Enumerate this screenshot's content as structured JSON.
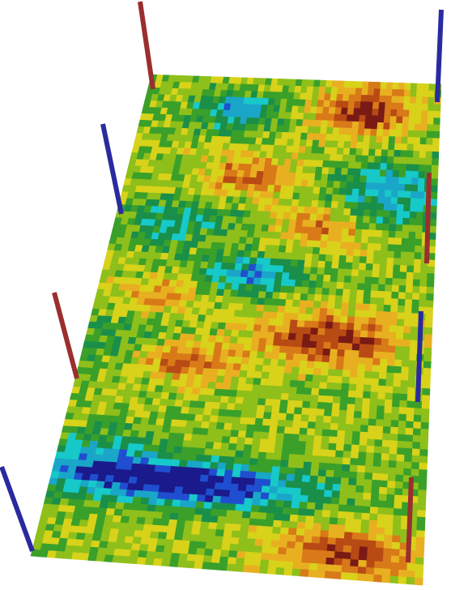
{
  "scene": {
    "colors": {
      "background": "#ffffff",
      "producer_well": "#9b2e2e",
      "injector_well": "#2a2aa0",
      "ramp": [
        "#1a1a8c",
        "#1f4fd0",
        "#1aa6c8",
        "#17c9c9",
        "#1a8f4a",
        "#3aa02a",
        "#8fbf1a",
        "#d8d21a",
        "#e8b020",
        "#d87a18",
        "#b84a14",
        "#7a1a14"
      ]
    },
    "wells": [
      {
        "id": "well-1",
        "type": "producer"
      },
      {
        "id": "well-2",
        "type": "injector"
      },
      {
        "id": "well-3",
        "type": "injector"
      },
      {
        "id": "well-4",
        "type": "producer"
      },
      {
        "id": "well-5",
        "type": "producer"
      },
      {
        "id": "well-6",
        "type": "injector"
      },
      {
        "id": "well-7",
        "type": "injector"
      },
      {
        "id": "well-8",
        "type": "producer"
      }
    ]
  }
}
